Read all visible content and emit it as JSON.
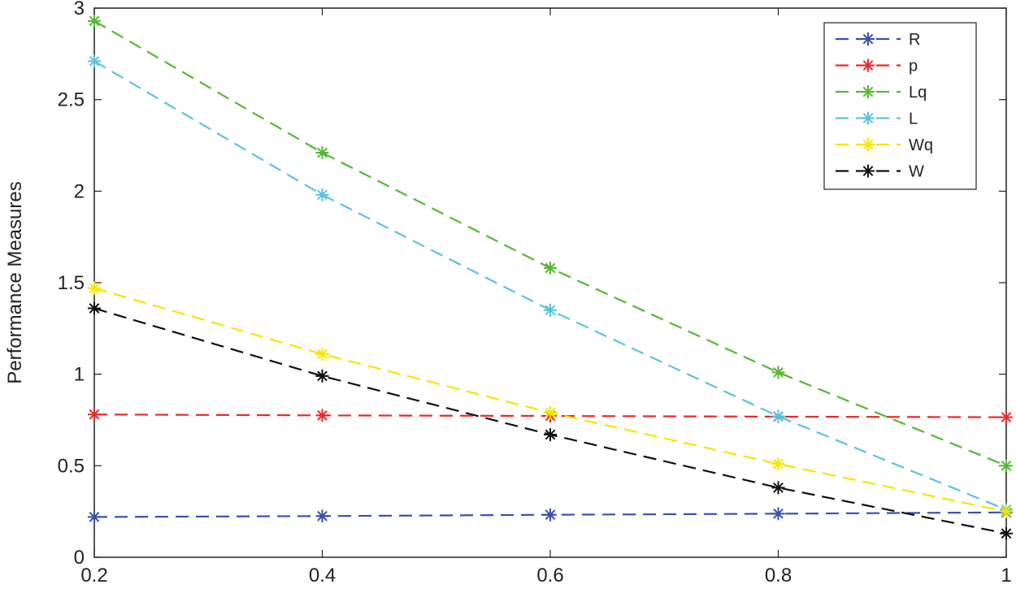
{
  "chart_data": {
    "type": "line",
    "title": "",
    "xlabel": "",
    "ylabel": "Performance Measures",
    "x": [
      0.2,
      0.4,
      0.6,
      0.8,
      1
    ],
    "xlim": [
      0.2,
      1
    ],
    "ylim": [
      0,
      3
    ],
    "x_ticks": [
      "0.2",
      "0.4",
      "0.6",
      "0.8",
      "1"
    ],
    "y_ticks": [
      "0",
      "0.5",
      "1",
      "1.5",
      "2",
      "2.5",
      "3"
    ],
    "x_tick_values": [
      0.2,
      0.4,
      0.6,
      0.8,
      1
    ],
    "y_tick_values": [
      0,
      0.5,
      1,
      1.5,
      2,
      2.5,
      3
    ],
    "grid": false,
    "legend_position": "top-right",
    "line_style": "dashed",
    "marker": "asterisk",
    "series": [
      {
        "name": "R",
        "color": "#3a4fb0",
        "values": [
          0.22,
          0.225,
          0.232,
          0.238,
          0.245
        ]
      },
      {
        "name": "p",
        "color": "#e8292b",
        "values": [
          0.78,
          0.775,
          0.772,
          0.768,
          0.765
        ]
      },
      {
        "name": "Lq",
        "color": "#55b834",
        "values": [
          2.93,
          2.21,
          1.58,
          1.01,
          0.5
        ]
      },
      {
        "name": "L",
        "color": "#5bc3dc",
        "values": [
          2.71,
          1.98,
          1.35,
          0.77,
          0.26
        ]
      },
      {
        "name": "Wq",
        "color": "#f5e600",
        "values": [
          1.47,
          1.11,
          0.79,
          0.51,
          0.25
        ]
      },
      {
        "name": "W",
        "color": "#111111",
        "values": [
          1.36,
          0.99,
          0.67,
          0.38,
          0.13
        ]
      }
    ]
  }
}
